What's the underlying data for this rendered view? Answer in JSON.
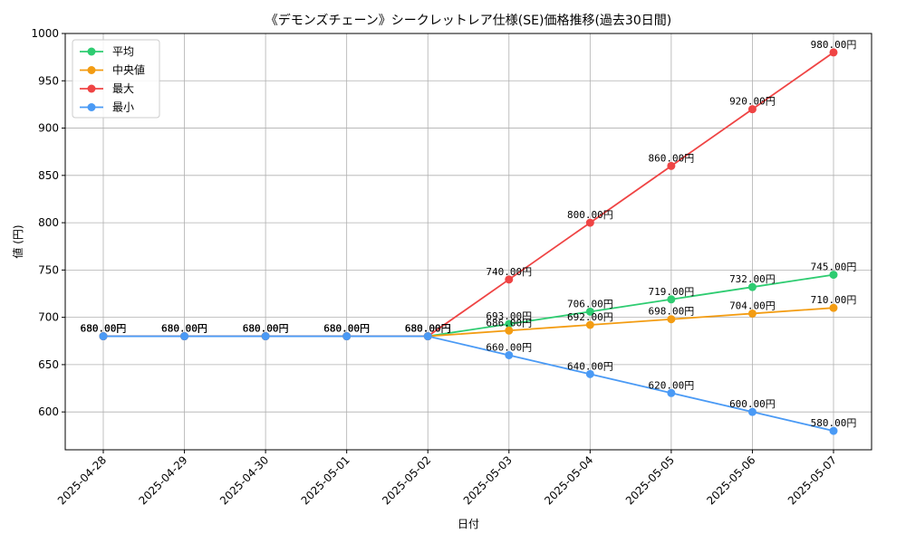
{
  "chart_data": {
    "type": "line",
    "title": "《デモンズチェーン》シークレットレア仕様(SE)価格推移(過去30日間)",
    "xlabel": "日付",
    "ylabel": "値 (円)",
    "categories": [
      "2025-04-28",
      "2025-04-29",
      "2025-04-30",
      "2025-05-01",
      "2025-05-02",
      "2025-05-03",
      "2025-05-04",
      "2025-05-05",
      "2025-05-06",
      "2025-05-07"
    ],
    "ylim": [
      560,
      1000
    ],
    "yticks": [
      600,
      650,
      700,
      750,
      800,
      850,
      900,
      950,
      1000
    ],
    "grid": true,
    "legend_position": "top-left",
    "value_suffix": "円",
    "series": [
      {
        "name": "平均",
        "color": "#2ecc71",
        "values": [
          680,
          680,
          680,
          680,
          680,
          693,
          706,
          719,
          732,
          745
        ]
      },
      {
        "name": "中央値",
        "color": "#f39c12",
        "values": [
          680,
          680,
          680,
          680,
          680,
          686,
          692,
          698,
          704,
          710
        ]
      },
      {
        "name": "最大",
        "color": "#ef4444",
        "values": [
          680,
          680,
          680,
          680,
          680,
          740,
          800,
          860,
          920,
          980
        ]
      },
      {
        "name": "最小",
        "color": "#4a9af5",
        "values": [
          680,
          680,
          680,
          680,
          680,
          660,
          640,
          620,
          600,
          580
        ]
      }
    ]
  }
}
